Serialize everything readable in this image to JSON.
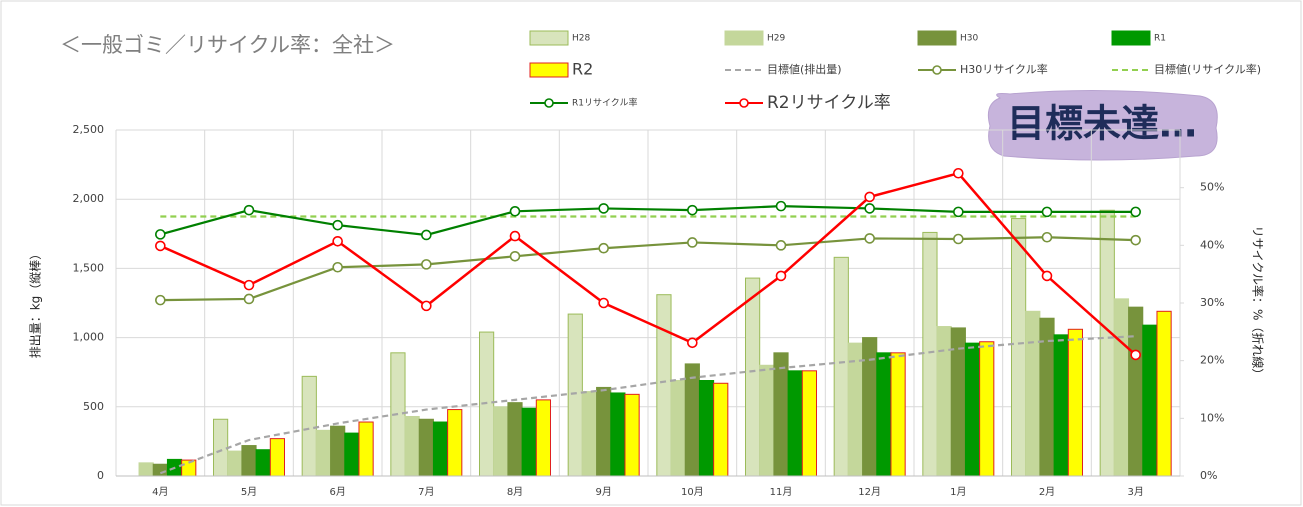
{
  "chart_data": {
    "type": "combo",
    "title": "＜一般ゴミ／リサイクル率：全社＞",
    "y_label": "排出量：kg（縦棒）",
    "y2_label": "リサイクル率：%（折れ線）",
    "annotation": "目標未達…",
    "categories": [
      "4月",
      "5月",
      "6月",
      "7月",
      "8月",
      "9月",
      "10月",
      "11月",
      "12月",
      "1月",
      "2月",
      "3月"
    ],
    "ylim": [
      0,
      2500
    ],
    "yticks": [
      0,
      500,
      {
        "value": 1000,
        "label": "1,000"
      },
      {
        "value": 1500,
        "label": "1,500"
      },
      {
        "value": 2000,
        "label": "2,000"
      },
      {
        "value": 2500,
        "label": "2,500"
      }
    ],
    "y2lim": [
      0,
      60
    ],
    "y2ticks": [
      {
        "value": 0,
        "label": "0%"
      },
      {
        "value": 10,
        "label": "10%"
      },
      {
        "value": 20,
        "label": "20%"
      },
      {
        "value": 30,
        "label": "30%"
      },
      {
        "value": 40,
        "label": "40%"
      },
      {
        "value": 50,
        "label": "50%"
      }
    ],
    "grid": true,
    "series": [
      {
        "name": "H28",
        "type": "bar",
        "color": "#d8e4bc",
        "stroke": "#9bbb59",
        "values": [
          null,
          410,
          720,
          890,
          1040,
          1170,
          1310,
          1430,
          1580,
          1760,
          1860,
          1920
        ]
      },
      {
        "name": "H29",
        "type": "bar",
        "color": "#c4d79b",
        "stroke": "#c4d79b",
        "values": [
          95,
          180,
          330,
          430,
          500,
          610,
          690,
          800,
          960,
          1080,
          1190,
          1280
        ]
      },
      {
        "name": "H30",
        "type": "bar",
        "color": "#77933c",
        "stroke": "#77933c",
        "values": [
          85,
          220,
          360,
          410,
          530,
          640,
          810,
          890,
          1000,
          1070,
          1140,
          1220
        ]
      },
      {
        "name": "R1",
        "type": "bar",
        "color": "#009900",
        "stroke": "#009900",
        "values": [
          120,
          190,
          310,
          390,
          490,
          600,
          690,
          760,
          890,
          960,
          1020,
          1090
        ]
      },
      {
        "name": "R2",
        "type": "bar",
        "color": "#ffff00",
        "stroke": "#e02020",
        "values": [
          115,
          270,
          390,
          480,
          550,
          590,
          670,
          760,
          890,
          970,
          1060,
          1190
        ]
      },
      {
        "name": "目標値(排出量)",
        "type": "line",
        "dashed": true,
        "color": "#a6a6a6",
        "values": [
          20,
          260,
          380,
          480,
          550,
          620,
          710,
          780,
          840,
          920,
          975,
          1010
        ]
      },
      {
        "name": "H30リサイクル率",
        "type": "line",
        "marker": true,
        "axis": "y2",
        "color": "#77933c",
        "values": [
          30.5,
          30.7,
          36.2,
          36.7,
          38.1,
          39.5,
          40.5,
          40.0,
          41.2,
          41.1,
          41.4,
          40.9
        ]
      },
      {
        "name": "目標値(リサイクル率)",
        "type": "line",
        "dashed": true,
        "axis": "y2",
        "color": "#92d050",
        "values": [
          45,
          45,
          45,
          45,
          45,
          45,
          45,
          45,
          45,
          45,
          45,
          45
        ]
      },
      {
        "name": "R1リサイクル率",
        "type": "line",
        "marker": true,
        "axis": "y2",
        "color": "#008000",
        "values": [
          41.9,
          46.1,
          43.5,
          41.8,
          45.9,
          46.4,
          46.1,
          46.8,
          46.4,
          45.8,
          45.8,
          45.8
        ]
      },
      {
        "name": "R2リサイクル率",
        "type": "line",
        "marker": true,
        "axis": "y2",
        "color": "#ff0000",
        "values": [
          39.9,
          33.1,
          40.7,
          29.5,
          41.6,
          30.0,
          23.1,
          34.7,
          48.4,
          52.5,
          34.7,
          21.0
        ]
      }
    ]
  }
}
